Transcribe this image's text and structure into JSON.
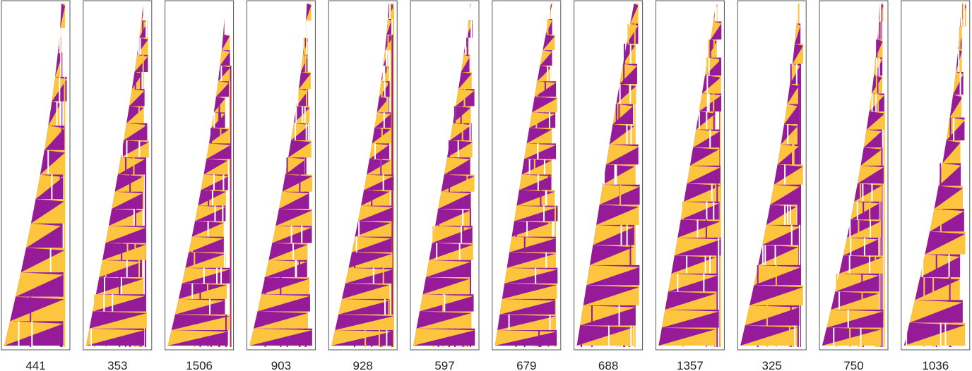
{
  "panels": [
    {
      "label": "441"
    },
    {
      "label": "353"
    },
    {
      "label": "1506"
    },
    {
      "label": "903"
    },
    {
      "label": "928"
    },
    {
      "label": "597"
    },
    {
      "label": "679"
    },
    {
      "label": "688"
    },
    {
      "label": "1357"
    },
    {
      "label": "325"
    },
    {
      "label": "750"
    },
    {
      "label": "1036"
    }
  ]
}
